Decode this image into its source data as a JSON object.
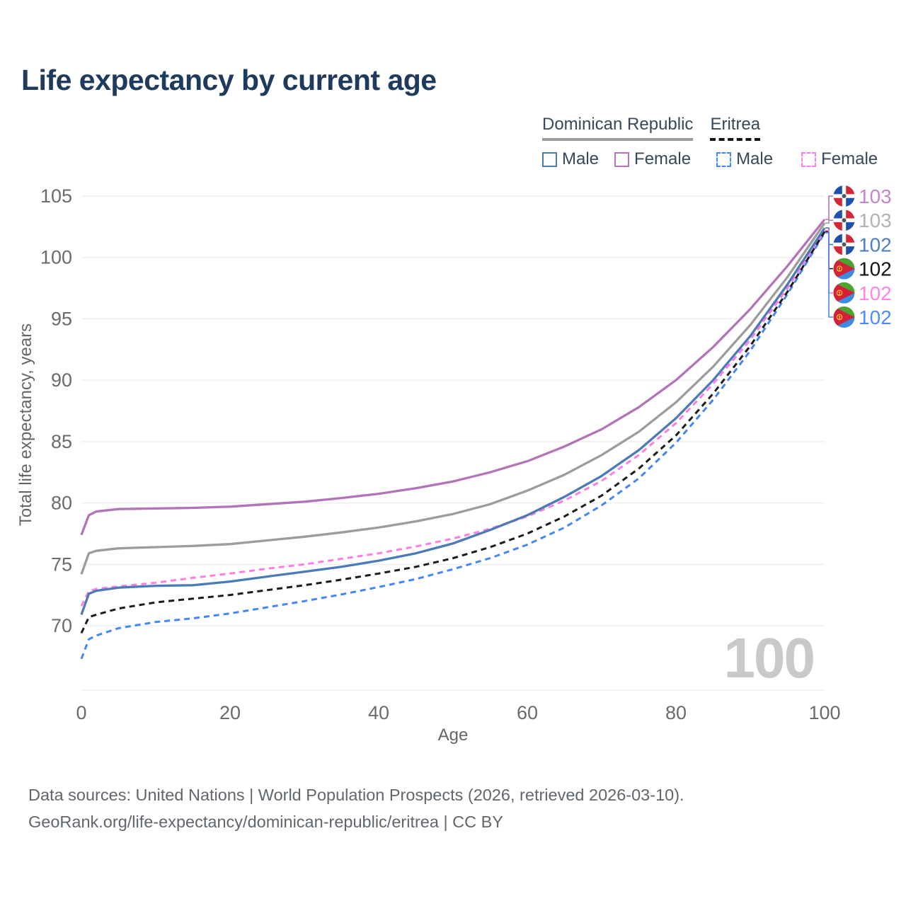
{
  "title": "Life expectancy by current age",
  "legend": {
    "groups": [
      {
        "label": "Dominican Republic",
        "style": "solid",
        "color": "#9c9c9c"
      },
      {
        "label": "Eritrea",
        "style": "dashed",
        "color": "#141414"
      }
    ],
    "items": [
      {
        "label": "Male",
        "country": "Dominican Republic",
        "style": "solid",
        "color": "#4b7ab8"
      },
      {
        "label": "Female",
        "country": "Dominican Republic",
        "style": "solid",
        "color": "#b273b8"
      },
      {
        "label": "Male",
        "country": "Eritrea",
        "style": "dashed",
        "color": "#4287f5"
      },
      {
        "label": "Female",
        "country": "Eritrea",
        "style": "dashed",
        "color": "#ff7ce6"
      }
    ]
  },
  "chart_data": {
    "type": "line",
    "title": "Life expectancy by current age",
    "xlabel": "Age",
    "ylabel": "Total life expectancy, years",
    "xlim": [
      0,
      100
    ],
    "ylim": [
      70,
      105
    ],
    "xticks": [
      0,
      20,
      40,
      60,
      80,
      100
    ],
    "yticks": [
      70,
      75,
      80,
      85,
      90,
      95,
      100,
      105
    ],
    "grid": "horizontal",
    "legend_position": "top-right",
    "x": [
      0,
      1,
      2,
      5,
      10,
      15,
      20,
      25,
      30,
      35,
      40,
      45,
      50,
      55,
      60,
      65,
      70,
      75,
      80,
      85,
      90,
      95,
      100
    ],
    "series": [
      {
        "name": "Dominican Republic - Female",
        "country": "Dominican Republic",
        "sex": "female",
        "color": "#b273b8",
        "dash": false,
        "end_label": "103",
        "label_color": "#c585cb",
        "flag": "dr",
        "flag_icon": "dominican-republic-flag-icon",
        "values": [
          77.4,
          79.0,
          79.3,
          79.5,
          79.55,
          79.6,
          79.7,
          79.9,
          80.1,
          80.4,
          80.75,
          81.2,
          81.75,
          82.5,
          83.4,
          84.6,
          86.0,
          87.8,
          90.0,
          92.7,
          95.8,
          99.3,
          103.1
        ]
      },
      {
        "name": "Dominican Republic - Both sexes",
        "country": "Dominican Republic",
        "sex": "both",
        "color": "#9c9c9c",
        "dash": false,
        "end_label": "103",
        "label_color": "#b2b2b2",
        "flag": "dr",
        "flag_icon": "dominican-republic-flag-icon",
        "values": [
          74.2,
          75.9,
          76.1,
          76.3,
          76.4,
          76.5,
          76.65,
          76.95,
          77.25,
          77.6,
          78.0,
          78.5,
          79.1,
          79.9,
          81.0,
          82.3,
          83.9,
          85.8,
          88.2,
          91.1,
          94.5,
          98.4,
          102.8
        ]
      },
      {
        "name": "Dominican Republic - Male",
        "country": "Dominican Republic",
        "sex": "male",
        "color": "#4b7ab8",
        "dash": false,
        "end_label": "102",
        "label_color": "#4e7fc4",
        "flag": "dr",
        "flag_icon": "dominican-republic-flag-icon",
        "values": [
          70.9,
          72.6,
          72.85,
          73.1,
          73.25,
          73.3,
          73.6,
          74.0,
          74.4,
          74.8,
          75.3,
          75.9,
          76.7,
          77.8,
          79.0,
          80.5,
          82.2,
          84.3,
          86.9,
          90.0,
          93.6,
          97.8,
          102.4
        ]
      },
      {
        "name": "Eritrea - Both sexes",
        "country": "Eritrea",
        "sex": "both",
        "color": "#1b1b1b",
        "dash": true,
        "end_label": "102",
        "label_color": "#121212",
        "flag": "er",
        "flag_icon": "eritrea-flag-icon",
        "values": [
          69.4,
          70.7,
          70.9,
          71.4,
          71.9,
          72.2,
          72.5,
          72.9,
          73.3,
          73.75,
          74.25,
          74.8,
          75.5,
          76.4,
          77.5,
          78.9,
          80.6,
          82.8,
          85.5,
          88.9,
          92.8,
          97.2,
          102.1
        ]
      },
      {
        "name": "Eritrea - Female",
        "country": "Eritrea",
        "sex": "female",
        "color": "#ff7ce6",
        "dash": true,
        "end_label": "102",
        "label_color": "#ff85ea",
        "flag": "er",
        "flag_icon": "eritrea-flag-icon",
        "values": [
          71.6,
          72.8,
          73.0,
          73.2,
          73.5,
          73.9,
          74.25,
          74.65,
          75.0,
          75.45,
          75.9,
          76.45,
          77.1,
          77.9,
          78.9,
          80.2,
          81.8,
          83.9,
          86.5,
          89.7,
          93.3,
          97.5,
          102.2
        ]
      },
      {
        "name": "Eritrea - Male",
        "country": "Eritrea",
        "sex": "male",
        "color": "#4287f5",
        "dash": true,
        "end_label": "102",
        "label_color": "#4d8df5",
        "flag": "er",
        "flag_icon": "eritrea-flag-icon",
        "values": [
          67.3,
          68.9,
          69.2,
          69.8,
          70.3,
          70.6,
          71.0,
          71.5,
          72.0,
          72.55,
          73.15,
          73.8,
          74.6,
          75.5,
          76.6,
          78.0,
          79.8,
          82.0,
          84.9,
          88.4,
          92.4,
          97.0,
          102.0
        ]
      }
    ]
  },
  "watermark": "100",
  "footer": {
    "line1": "Data sources: United Nations | World Population Prospects (2026, retrieved 2026-03-10).",
    "line2": "GeoRank.org/life-expectancy/dominican-republic/eritrea | CC BY"
  }
}
